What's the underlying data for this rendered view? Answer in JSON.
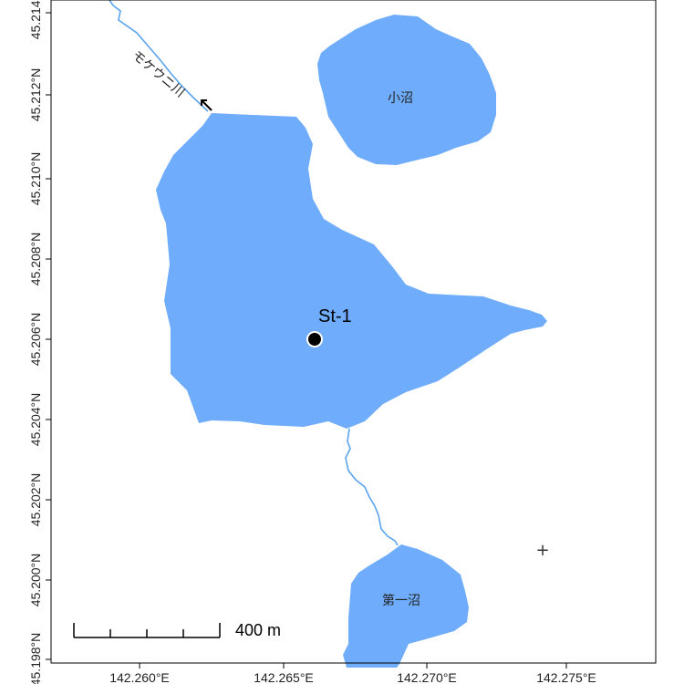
{
  "map": {
    "x_ticks": [
      "142.260°E",
      "142.265°E",
      "142.270°E",
      "142.275°E"
    ],
    "y_ticks": [
      "45.198°N",
      "45.200°N",
      "45.202°N",
      "45.204°N",
      "45.206°N",
      "45.208°N",
      "45.210°N",
      "45.212°N",
      "45.214°N"
    ],
    "lakes": {
      "kosho": "小沼",
      "daiichi": "第一沼"
    },
    "river": "モケウニ川",
    "station": "St-1",
    "scale_bar": "400 m",
    "crosshair_symbol": "+",
    "colors": {
      "water": "#6fadfc",
      "river_line": "#5aa3ee",
      "frame": "#000000",
      "station_fill": "#000000",
      "station_ring": "#ffffff"
    }
  }
}
